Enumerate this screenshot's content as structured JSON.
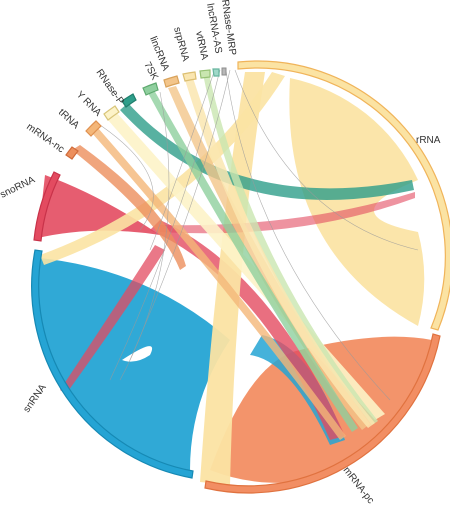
{
  "diagram": {
    "type": "chord",
    "segments": [
      {
        "id": "rRNA",
        "label": "rRNA",
        "color": "#fbe3a3",
        "edge": "#f0b45a"
      },
      {
        "id": "mRNA-pc",
        "label": "mRNA-pc",
        "color": "#f28e63",
        "edge": "#e0723f"
      },
      {
        "id": "snRNA",
        "label": "snRNA",
        "color": "#25a4d4",
        "edge": "#1689b4"
      },
      {
        "id": "snoRNA",
        "label": "snoRNA",
        "color": "#e34b60",
        "edge": "#c83249"
      },
      {
        "id": "mRNA-nc",
        "label": "mRNA-nc",
        "color": "#ec8f5d",
        "edge": "#d06b3a"
      },
      {
        "id": "tRNA",
        "label": "tRNA",
        "color": "#f4b678",
        "edge": "#e09150"
      },
      {
        "id": "Y RNA",
        "label": "Y RNA",
        "color": "#fdf3c8",
        "edge": "#d8c57a"
      },
      {
        "id": "RNase-P",
        "label": "RNase-P",
        "color": "#2e9e8a",
        "edge": "#1f7e6c"
      },
      {
        "id": "7SK",
        "label": "7SK",
        "color": "#8fcf9e",
        "edge": "#5ea96f"
      },
      {
        "id": "lincRNA",
        "label": "lincRNA",
        "color": "#f3c58a",
        "edge": "#d9a35c"
      },
      {
        "id": "srpRNA",
        "label": "srpRNA",
        "color": "#fae6b0",
        "edge": "#dcbf72"
      },
      {
        "id": "vtRNA",
        "label": "vtRNA",
        "color": "#c9e6b0",
        "edge": "#97c276"
      },
      {
        "id": "lncRNA-AS",
        "label": "lncRNA-AS",
        "color": "#9fd8c8",
        "edge": "#66b49e"
      },
      {
        "id": "RNase-MRP",
        "label": "RNase-MRP",
        "color": "#b7b7b7",
        "edge": "#8e8e8e"
      }
    ]
  }
}
